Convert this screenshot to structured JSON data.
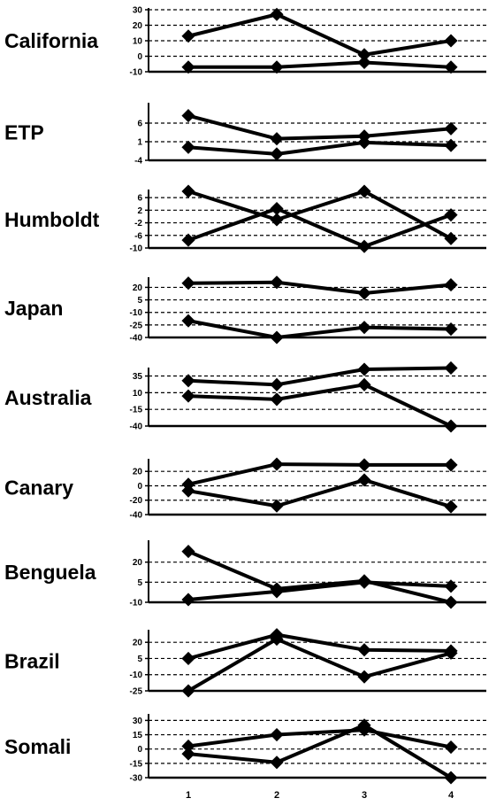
{
  "chart_data": {
    "type": "line",
    "grid": "dashed horizontal lines at tick values",
    "x_ticks": [
      "1",
      "2",
      "3",
      "4"
    ],
    "panels": [
      {
        "region": "California",
        "yticks": [
          "30",
          "20",
          "10",
          "0",
          "-10"
        ],
        "ylim": [
          -10,
          30
        ],
        "series": [
          {
            "values": [
              13,
              27,
              1,
              10
            ]
          },
          {
            "values": [
              -7,
              -7,
              -4,
              -7
            ]
          }
        ]
      },
      {
        "region": "ETP",
        "yticks": [
          "6",
          "1",
          "-4"
        ],
        "ylim": [
          -4,
          11
        ],
        "series": [
          {
            "values": [
              8,
              1.8,
              2.5,
              4.5
            ]
          },
          {
            "values": [
              -0.5,
              -2.3,
              0.8,
              0
            ]
          }
        ]
      },
      {
        "region": "Humboldt",
        "yticks": [
          "6",
          "2",
          "-2",
          "-6",
          "-10"
        ],
        "ylim": [
          -10,
          8
        ],
        "series": [
          {
            "values": [
              8,
              -1,
              8,
              -7
            ]
          },
          {
            "values": [
              -7.5,
              2.5,
              -9.5,
              0.5
            ]
          }
        ]
      },
      {
        "region": "Japan",
        "yticks": [
          "20",
          "5",
          "-10",
          "-25",
          "-40"
        ],
        "ylim": [
          -40,
          30
        ],
        "series": [
          {
            "values": [
              25,
              26,
              13,
              23
            ]
          },
          {
            "values": [
              -20,
              -40,
              -28,
              -30
            ]
          }
        ]
      },
      {
        "region": "Australia",
        "yticks": [
          "35",
          "10",
          "-15",
          "-40"
        ],
        "ylim": [
          -40,
          45
        ],
        "series": [
          {
            "values": [
              28,
              22,
              45,
              47
            ]
          },
          {
            "values": [
              5,
              0,
              22,
              -40
            ]
          }
        ]
      },
      {
        "region": "Canary",
        "yticks": [
          "20",
          "0",
          "-20",
          "-40"
        ],
        "ylim": [
          -40,
          35
        ],
        "series": [
          {
            "values": [
              2,
              30,
              29,
              29
            ]
          },
          {
            "values": [
              -7,
              -28,
              8,
              -29
            ]
          }
        ]
      },
      {
        "region": "Benguela",
        "yticks": [
          "20",
          "5",
          "-10"
        ],
        "ylim": [
          -10,
          35
        ],
        "series": [
          {
            "values": [
              28,
              0,
              6,
              -10
            ]
          },
          {
            "values": [
              -8,
              -2,
              5,
              2
            ]
          }
        ]
      },
      {
        "region": "Brazil",
        "yticks": [
          "20",
          "5",
          "-10",
          "-25"
        ],
        "ylim": [
          -25,
          30
        ],
        "series": [
          {
            "values": [
              5,
              27,
              13,
              12
            ]
          },
          {
            "values": [
              -25,
              23,
              -12,
              10
            ]
          }
        ]
      },
      {
        "region": "Somali",
        "yticks": [
          "30",
          "15",
          "0",
          "-15",
          "-30"
        ],
        "ylim": [
          -30,
          35
        ],
        "series": [
          {
            "values": [
              3,
              15,
              20,
              2
            ]
          },
          {
            "values": [
              -5,
              -14,
              25,
              -30
            ]
          }
        ]
      }
    ]
  }
}
